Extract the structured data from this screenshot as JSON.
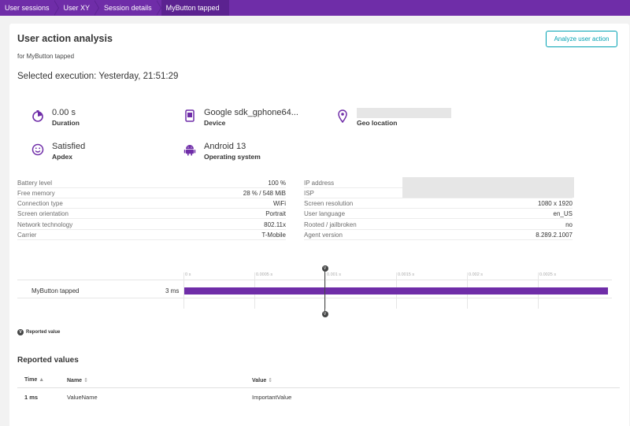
{
  "breadcrumbs": [
    "User sessions",
    "User XY",
    "Session details",
    "MyButton tapped"
  ],
  "header": {
    "title": "User action analysis",
    "subtitle": "for MyButton tapped",
    "selected_execution": "Selected execution: Yesterday, 21:51:29",
    "analyze_button": "Analyze user action"
  },
  "stats": {
    "duration": {
      "value": "0.00 s",
      "label": "Duration",
      "icon": "stopwatch-icon"
    },
    "device": {
      "value": "Google sdk_gphone64...",
      "label": "Device",
      "icon": "phone-icon"
    },
    "geo": {
      "value": "",
      "label": "Geo location",
      "icon": "map-pin-icon"
    },
    "apdex": {
      "value": "Satisfied",
      "label": "Apdex",
      "icon": "smiley-icon"
    },
    "os": {
      "value": "Android 13",
      "label": "Operating system",
      "icon": "android-icon"
    }
  },
  "properties_left": [
    {
      "key": "Battery level",
      "value": "100 %"
    },
    {
      "key": "Free memory",
      "value": "28 % / 548 MiB"
    },
    {
      "key": "Connection type",
      "value": "WiFi"
    },
    {
      "key": "Screen orientation",
      "value": "Portrait"
    },
    {
      "key": "Network technology",
      "value": "802.11x"
    },
    {
      "key": "Carrier",
      "value": "T-Mobile"
    }
  ],
  "properties_right": [
    {
      "key": "IP address",
      "value": ""
    },
    {
      "key": "ISP",
      "value": ""
    },
    {
      "key": "Screen resolution",
      "value": "1080 x 1920"
    },
    {
      "key": "User language",
      "value": "en_US"
    },
    {
      "key": "Rooted / jailbroken",
      "value": "no"
    },
    {
      "key": "Agent version",
      "value": "8.289.2.1007"
    }
  ],
  "timeline": {
    "ticks": [
      "0 s",
      "0.0005 s",
      "0.001 s",
      "0.0015 s",
      "0.002 s",
      "0.0025 s"
    ],
    "row_name": "MyButton tapped",
    "row_duration": "3 ms",
    "marker_glyph": "V",
    "legend": "Reported value"
  },
  "reported_values": {
    "title": "Reported values",
    "columns": [
      "Time",
      "Name",
      "Value"
    ],
    "sort_glyphs": [
      "▲",
      "⇕",
      "⇕"
    ],
    "rows": [
      {
        "time": "1 ms",
        "name": "ValueName",
        "value": "ImportantValue"
      }
    ]
  },
  "colors": {
    "brand": "#6f2da8",
    "accent": "#00a1b2"
  }
}
